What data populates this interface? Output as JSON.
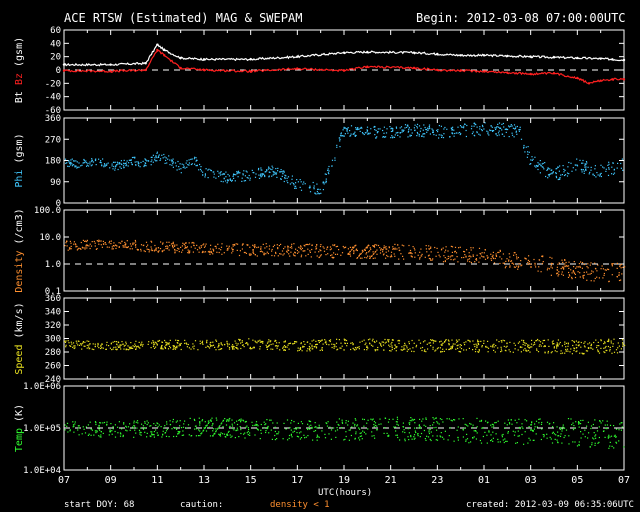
{
  "header": {
    "title": "ACE RTSW (Estimated) MAG & SWEPAM",
    "begin": "Begin: 2012-03-08 07:00:00UTC"
  },
  "footer": {
    "start_doy": "start DOY:  68",
    "caution": "caution:",
    "caution_note": "density < 1",
    "created": "created: 2012-03-09 06:35:06UTC",
    "xlabel": "UTC(hours)"
  },
  "colors": {
    "bt": "#ffffff",
    "bz": "#ff2020",
    "phi": "#40c8ff",
    "density": "#ff9030",
    "speed": "#e8e020",
    "temp": "#30ff30",
    "axes": "#ffffff",
    "ref": "#ffffff"
  },
  "chart_data": [
    {
      "type": "line",
      "panel": "mag",
      "ylabel": [
        "Bt",
        "Bz",
        "(gsm)"
      ],
      "ylim": [
        -60,
        60
      ],
      "yticks": [
        60,
        40,
        20,
        0,
        -20,
        -40,
        -60
      ],
      "ytick_labels": [
        "60",
        "40",
        "20",
        "0",
        "-20",
        "-40",
        "-60"
      ],
      "reference_line": 0,
      "series": [
        {
          "name": "Bt",
          "x": [
            0,
            2,
            3.5,
            4.0,
            4.3,
            5,
            6,
            8,
            10,
            12,
            13,
            15,
            16,
            17,
            18,
            19,
            20,
            21,
            22,
            23,
            23.5,
            24
          ],
          "y": [
            8,
            8,
            10,
            38,
            30,
            18,
            16,
            16,
            20,
            26,
            27,
            26,
            24,
            22,
            22,
            21,
            20,
            19,
            18,
            17,
            16,
            15
          ]
        },
        {
          "name": "Bz",
          "x": [
            0,
            2,
            3.5,
            4.0,
            4.3,
            5,
            6,
            8,
            10,
            12,
            13,
            15,
            16,
            17,
            18,
            19,
            20,
            21,
            22,
            22.5,
            23,
            23.5,
            24
          ],
          "y": [
            -1,
            -2,
            0,
            30,
            22,
            3,
            0,
            -2,
            2,
            -1,
            5,
            3,
            0,
            -1,
            -2,
            -4,
            -6,
            -5,
            -12,
            -20,
            -16,
            -14,
            -14
          ]
        }
      ]
    },
    {
      "type": "scatter",
      "panel": "phi",
      "ylabel": [
        "Phi",
        "(gsm)"
      ],
      "ylim": [
        0,
        360
      ],
      "yticks": [
        360,
        270,
        180,
        90,
        0
      ],
      "ytick_labels": [
        "360",
        "270",
        "180",
        "90",
        "0"
      ],
      "series": [
        {
          "name": "Phi",
          "x": [
            0,
            0.5,
            1,
            1.5,
            2,
            2.5,
            3,
            3.5,
            4,
            4.5,
            5,
            5.5,
            6,
            7,
            8,
            9,
            10,
            11,
            12,
            13,
            14,
            15,
            16,
            17,
            18,
            19,
            19.5,
            20,
            20.5,
            21,
            22,
            23,
            24
          ],
          "y": [
            175,
            168,
            170,
            180,
            158,
            165,
            180,
            170,
            200,
            180,
            150,
            190,
            130,
            110,
            120,
            140,
            80,
            60,
            310,
            300,
            305,
            310,
            305,
            310,
            315,
            310,
            300,
            180,
            150,
            120,
            160,
            140,
            160
          ]
        }
      ]
    },
    {
      "type": "scatter",
      "panel": "density",
      "ylabel": [
        "Density",
        "(/cm3)"
      ],
      "yscale": "log",
      "ylim": [
        0.1,
        100
      ],
      "yticks": [
        100,
        10,
        1,
        0.1
      ],
      "ytick_labels": [
        "100.0",
        "10.0",
        "1.0",
        "0.1"
      ],
      "reference_line": 1,
      "series": [
        {
          "name": "Density",
          "x": [
            0,
            2,
            4,
            6,
            8,
            10,
            12,
            14,
            16,
            18,
            19,
            20,
            21,
            22,
            23,
            24
          ],
          "y": [
            5,
            5.5,
            4.5,
            4,
            3.5,
            3.5,
            3,
            3,
            2.5,
            2.2,
            1.5,
            1.2,
            0.8,
            0.6,
            0.5,
            0.5
          ]
        }
      ]
    },
    {
      "type": "scatter",
      "panel": "speed",
      "ylabel": [
        "Speed",
        "(km/s)"
      ],
      "ylim": [
        240,
        360
      ],
      "yticks": [
        360,
        340,
        320,
        300,
        280,
        260,
        240
      ],
      "ytick_labels": [
        "360",
        "340",
        "320",
        "300",
        "280",
        "260",
        "240"
      ],
      "series": [
        {
          "name": "Speed",
          "x": [
            0,
            2,
            4,
            6,
            8,
            10,
            12,
            14,
            16,
            18,
            20,
            22,
            24
          ],
          "y": [
            292,
            290,
            292,
            291,
            293,
            290,
            292,
            291,
            290,
            290,
            290,
            288,
            290
          ]
        }
      ]
    },
    {
      "type": "scatter",
      "panel": "temp",
      "ylabel": [
        "Temp",
        "(K)"
      ],
      "yscale": "log",
      "ylim": [
        10000,
        1000000
      ],
      "yticks": [
        1000000,
        100000,
        10000
      ],
      "ytick_labels": [
        "1.0E+06",
        "1.0E+05",
        "1.0E+04"
      ],
      "reference_line": 100000,
      "series": [
        {
          "name": "Temp",
          "x": [
            0,
            2,
            4,
            6,
            8,
            10,
            12,
            14,
            16,
            18,
            20,
            22,
            24
          ],
          "y": [
            100000,
            95000,
            100000,
            110000,
            100000,
            90000,
            95000,
            100000,
            95000,
            90000,
            85000,
            80000,
            70000
          ]
        }
      ]
    }
  ],
  "xaxis": {
    "xlim": [
      0,
      24
    ],
    "tick_labels": [
      "07",
      "09",
      "11",
      "13",
      "15",
      "17",
      "19",
      "21",
      "23",
      "01",
      "03",
      "05",
      "07"
    ]
  }
}
